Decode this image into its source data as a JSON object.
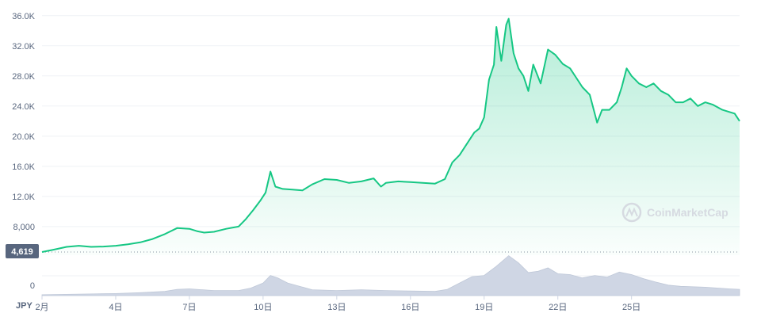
{
  "chart_data": {
    "type": "area",
    "currency": "JPY",
    "watermark": "CoinMarketCap",
    "baseline_tag": "4,619",
    "baseline_value": 4619,
    "colors": {
      "line": "#16c784",
      "fill": "#16c784",
      "volume": "#cfd6e4",
      "tag": "#58667e",
      "grid": "#eff2f5"
    },
    "y_ticks": [
      {
        "label": "36.0K",
        "value": 36000
      },
      {
        "label": "32.0K",
        "value": 32000
      },
      {
        "label": "28.0K",
        "value": 28000
      },
      {
        "label": "24.0K",
        "value": 24000
      },
      {
        "label": "20.0K",
        "value": 20000
      },
      {
        "label": "16.0K",
        "value": 16000
      },
      {
        "label": "12.0K",
        "value": 12000
      },
      {
        "label": "8,000",
        "value": 8000
      }
    ],
    "volume_tick": "0",
    "x_ticks": [
      {
        "label": "2月",
        "day": 1
      },
      {
        "label": "4日",
        "day": 4
      },
      {
        "label": "7日",
        "day": 7
      },
      {
        "label": "10日",
        "day": 10
      },
      {
        "label": "13日",
        "day": 13
      },
      {
        "label": "16日",
        "day": 16
      },
      {
        "label": "19日",
        "day": 19
      },
      {
        "label": "22日",
        "day": 22
      },
      {
        "label": "25日",
        "day": 25
      }
    ],
    "ylim": [
      4200,
      36500
    ],
    "xlim": [
      1,
      29.4
    ],
    "price": [
      [
        1.0,
        4619
      ],
      [
        1.5,
        4950
      ],
      [
        2.0,
        5300
      ],
      [
        2.5,
        5450
      ],
      [
        3.0,
        5300
      ],
      [
        3.5,
        5350
      ],
      [
        4.0,
        5450
      ],
      [
        4.5,
        5650
      ],
      [
        5.0,
        5900
      ],
      [
        5.5,
        6350
      ],
      [
        6.0,
        7000
      ],
      [
        6.5,
        7800
      ],
      [
        7.0,
        7700
      ],
      [
        7.3,
        7400
      ],
      [
        7.6,
        7200
      ],
      [
        8.0,
        7300
      ],
      [
        8.5,
        7700
      ],
      [
        9.0,
        8000
      ],
      [
        9.3,
        9000
      ],
      [
        9.6,
        10200
      ],
      [
        9.9,
        11500
      ],
      [
        10.1,
        12500
      ],
      [
        10.3,
        15300
      ],
      [
        10.5,
        13300
      ],
      [
        10.8,
        13000
      ],
      [
        11.2,
        12900
      ],
      [
        11.6,
        12800
      ],
      [
        12.0,
        13600
      ],
      [
        12.5,
        14300
      ],
      [
        13.0,
        14200
      ],
      [
        13.5,
        13800
      ],
      [
        14.0,
        14000
      ],
      [
        14.5,
        14400
      ],
      [
        14.8,
        13300
      ],
      [
        15.0,
        13800
      ],
      [
        15.5,
        14000
      ],
      [
        16.0,
        13900
      ],
      [
        16.5,
        13800
      ],
      [
        17.0,
        13700
      ],
      [
        17.4,
        14300
      ],
      [
        17.7,
        16500
      ],
      [
        18.0,
        17500
      ],
      [
        18.3,
        19000
      ],
      [
        18.6,
        20500
      ],
      [
        18.8,
        21000
      ],
      [
        19.0,
        22500
      ],
      [
        19.2,
        27500
      ],
      [
        19.4,
        29500
      ],
      [
        19.5,
        34500
      ],
      [
        19.7,
        30000
      ],
      [
        19.9,
        34800
      ],
      [
        20.0,
        35600
      ],
      [
        20.2,
        31000
      ],
      [
        20.4,
        29000
      ],
      [
        20.6,
        28000
      ],
      [
        20.8,
        26000
      ],
      [
        21.0,
        29500
      ],
      [
        21.3,
        27000
      ],
      [
        21.6,
        31500
      ],
      [
        21.9,
        30800
      ],
      [
        22.2,
        29600
      ],
      [
        22.5,
        29000
      ],
      [
        22.8,
        27500
      ],
      [
        23.0,
        26500
      ],
      [
        23.3,
        25500
      ],
      [
        23.6,
        21800
      ],
      [
        23.8,
        23500
      ],
      [
        24.1,
        23500
      ],
      [
        24.4,
        24500
      ],
      [
        24.6,
        26500
      ],
      [
        24.8,
        29000
      ],
      [
        25.0,
        28000
      ],
      [
        25.3,
        27000
      ],
      [
        25.6,
        26500
      ],
      [
        25.9,
        27000
      ],
      [
        26.2,
        26000
      ],
      [
        26.5,
        25500
      ],
      [
        26.8,
        24500
      ],
      [
        27.1,
        24500
      ],
      [
        27.4,
        25000
      ],
      [
        27.7,
        24000
      ],
      [
        28.0,
        24500
      ],
      [
        28.3,
        24200
      ],
      [
        28.7,
        23500
      ],
      [
        29.0,
        23200
      ],
      [
        29.2,
        23000
      ],
      [
        29.4,
        22000
      ]
    ],
    "volume": [
      [
        1.0,
        0.02
      ],
      [
        2.0,
        0.03
      ],
      [
        3.0,
        0.04
      ],
      [
        4.0,
        0.05
      ],
      [
        5.0,
        0.07
      ],
      [
        6.0,
        0.1
      ],
      [
        6.5,
        0.15
      ],
      [
        7.0,
        0.16
      ],
      [
        8.0,
        0.12
      ],
      [
        9.0,
        0.12
      ],
      [
        9.5,
        0.18
      ],
      [
        10.0,
        0.3
      ],
      [
        10.3,
        0.48
      ],
      [
        10.6,
        0.42
      ],
      [
        11.0,
        0.3
      ],
      [
        12.0,
        0.14
      ],
      [
        13.0,
        0.12
      ],
      [
        14.0,
        0.14
      ],
      [
        15.0,
        0.12
      ],
      [
        16.0,
        0.11
      ],
      [
        17.0,
        0.1
      ],
      [
        17.5,
        0.15
      ],
      [
        18.0,
        0.3
      ],
      [
        18.5,
        0.45
      ],
      [
        19.0,
        0.48
      ],
      [
        19.5,
        0.7
      ],
      [
        20.0,
        0.95
      ],
      [
        20.4,
        0.78
      ],
      [
        20.8,
        0.55
      ],
      [
        21.2,
        0.58
      ],
      [
        21.6,
        0.66
      ],
      [
        22.0,
        0.52
      ],
      [
        22.5,
        0.5
      ],
      [
        23.0,
        0.42
      ],
      [
        23.5,
        0.48
      ],
      [
        24.0,
        0.44
      ],
      [
        24.5,
        0.56
      ],
      [
        25.0,
        0.5
      ],
      [
        25.5,
        0.4
      ],
      [
        26.0,
        0.32
      ],
      [
        26.5,
        0.25
      ],
      [
        27.0,
        0.22
      ],
      [
        28.0,
        0.2
      ],
      [
        29.0,
        0.16
      ],
      [
        29.4,
        0.15
      ]
    ]
  }
}
